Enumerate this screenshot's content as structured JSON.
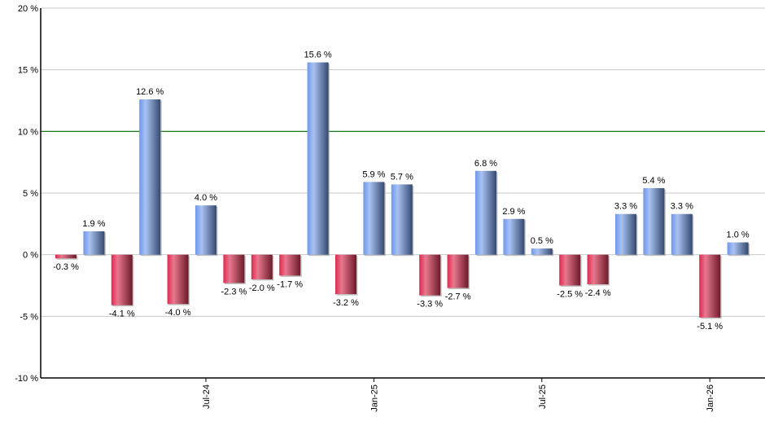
{
  "chart_data": {
    "type": "bar",
    "title": "",
    "xlabel": "",
    "ylabel": "",
    "ylim": [
      -10,
      20
    ],
    "yticks": [
      -10,
      -5,
      0,
      5,
      10,
      15,
      20
    ],
    "ytick_labels": [
      "-10 %",
      "-5 %",
      "0 %",
      "5 %",
      "10 %",
      "15 %",
      "20 %"
    ],
    "grid": true,
    "legend": null,
    "reference_line": {
      "value": 10,
      "color": "#007000"
    },
    "x_tick_labels": [
      {
        "label": "Jul-24",
        "bar_index": 5
      },
      {
        "label": "Jan-25",
        "bar_index": 11
      },
      {
        "label": "Jul-25",
        "bar_index": 17
      },
      {
        "label": "Jan-26",
        "bar_index": 23
      }
    ],
    "values": [
      -0.3,
      1.9,
      -4.1,
      12.6,
      -4.0,
      4.0,
      -2.3,
      -2.0,
      -1.7,
      15.6,
      -3.2,
      5.9,
      5.7,
      -3.3,
      -2.7,
      6.8,
      2.9,
      0.5,
      -2.5,
      -2.4,
      3.3,
      5.4,
      3.3,
      -5.1,
      1.0
    ],
    "value_labels": [
      "-0.3 %",
      "1.9 %",
      "-4.1 %",
      "12.6 %",
      "-4.0 %",
      "4.0 %",
      "-2.3 %",
      "-2.0 %",
      "-1.7 %",
      "15.6 %",
      "-3.2 %",
      "5.9 %",
      "5.7 %",
      "-3.3 %",
      "-2.7 %",
      "6.8 %",
      "2.9 %",
      "0.5 %",
      "-2.5 %",
      "-2.4 %",
      "3.3 %",
      "5.4 %",
      "3.3 %",
      "-5.1 %",
      "1.0 %"
    ],
    "colors": {
      "positive": "#7a9fe6",
      "negative": "#d8264f",
      "grid": "#c8c8c8",
      "axis": "#000000"
    }
  }
}
